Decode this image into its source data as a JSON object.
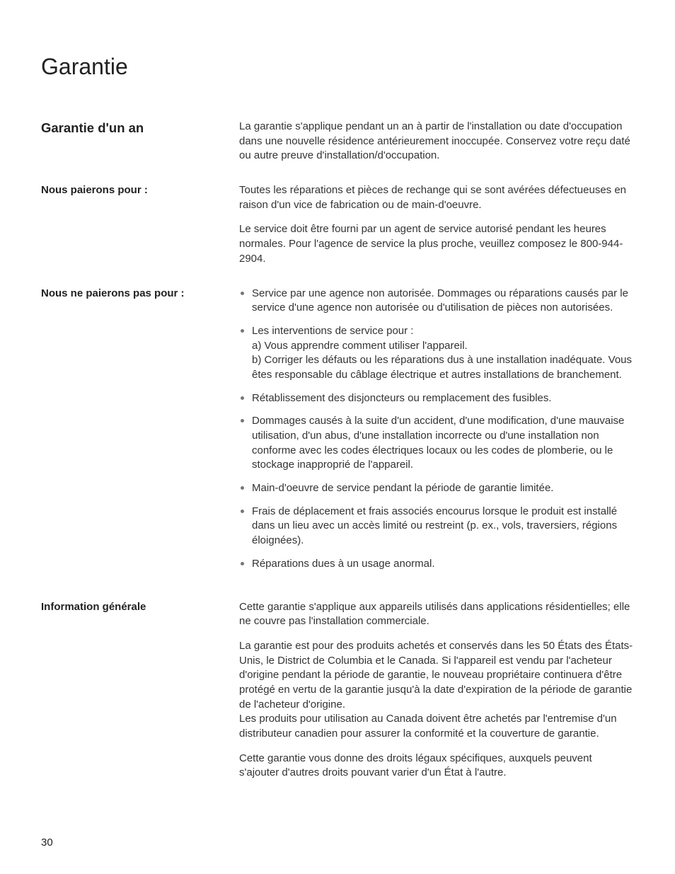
{
  "page": {
    "title": "Garantie",
    "page_number": "30"
  },
  "sections": {
    "one_year": {
      "heading": "Garantie d'un an",
      "body": "La garantie s'applique pendant un an à partir de l'installation ou date d'occupation dans une nouvelle résidence antérieurement inoccupée. Conservez votre reçu daté ou autre preuve d'installation/d'occupation."
    },
    "will_pay": {
      "heading": "Nous paierons pour :",
      "p1": "Toutes les réparations et pièces de rechange qui se sont avérées défectueuses en raison d'un vice de fabrication ou de main-d'oeuvre.",
      "p2": "Le service doit être fourni par un agent de service autorisé pendant les heures normales. Pour l'agence de service la plus proche, veuillez composez le 800-944-2904."
    },
    "will_not_pay": {
      "heading": "Nous ne paierons pas pour :",
      "items": [
        "Service par une agence non autorisée. Dommages ou réparations causés par le service d'une agence non autorisée ou d'utilisation de pièces non autorisées.",
        "Les interventions de service pour :\na) Vous apprendre comment utiliser l'appareil.\nb) Corriger les défauts ou les réparations dus à une installation inadéquate. Vous êtes responsable du câblage électrique et autres installations de branchement.",
        "Rétablissement des disjoncteurs ou remplacement des fusibles.",
        "Dommages causés à la suite d'un accident, d'une modification, d'une mauvaise utilisation, d'un abus, d'une installation incorrecte ou d'une installation non conforme avec les codes électriques locaux ou les codes de plomberie, ou le stockage inapproprié de l'appareil.",
        "Main-d'oeuvre de service pendant la période de garantie limitée.",
        "Frais de déplacement et frais associés encourus lorsque le produit est installé dans un lieu avec un accès limité ou restreint (p. ex., vols, traversiers, régions éloignées).",
        "Réparations dues à un usage anormal."
      ]
    },
    "general_info": {
      "heading": "Information générale",
      "p1": "Cette garantie s'applique aux appareils utilisés dans applications résidentielles; elle ne couvre pas l'installation commerciale.",
      "p2": "La garantie est pour des produits achetés et conservés dans les 50 États des États-Unis, le District de Columbia et le Canada. Si l'appareil est vendu par l'acheteur d'origine pendant la période de garantie, le nouveau propriétaire continuera d'être protégé en vertu de la garantie jusqu'à la date d'expiration de la période de garantie de l'acheteur d'origine.\nLes produits pour utilisation au Canada doivent être achetés par l'entremise d'un distributeur canadien pour assurer la conformité et la couverture de garantie.",
      "p3": "Cette garantie vous donne des droits légaux spécifiques, auxquels peuvent s'ajouter d'autres droits pouvant varier d'un État à l'autre."
    }
  }
}
